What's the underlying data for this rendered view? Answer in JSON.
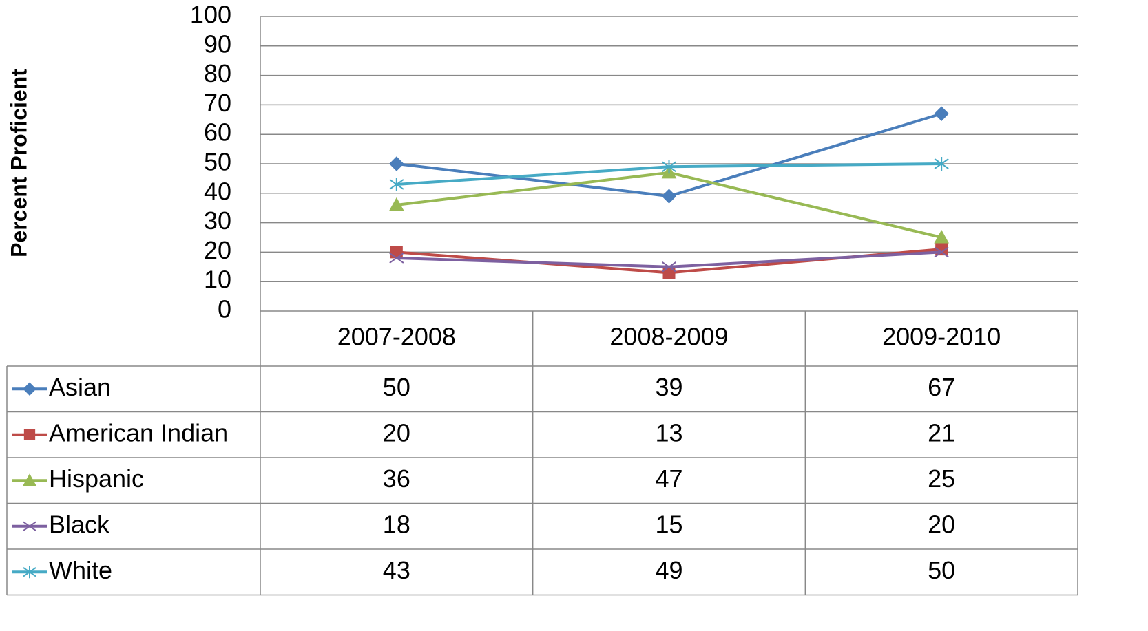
{
  "chart_data": {
    "type": "line",
    "ylabel": "Percent Proficient",
    "categories": [
      "2007-2008",
      "2008-2009",
      "2009-2010"
    ],
    "series": [
      {
        "name": "Asian",
        "color": "#4a7ebb",
        "marker": "diamond",
        "values": [
          50,
          39,
          67
        ]
      },
      {
        "name": "American Indian",
        "color": "#be4b48",
        "marker": "square",
        "values": [
          20,
          13,
          21
        ]
      },
      {
        "name": "Hispanic",
        "color": "#98b954",
        "marker": "triangle",
        "values": [
          36,
          47,
          25
        ]
      },
      {
        "name": "Black",
        "color": "#7d60a0",
        "marker": "x",
        "values": [
          18,
          15,
          20
        ]
      },
      {
        "name": "White",
        "color": "#46aac5",
        "marker": "asterisk",
        "values": [
          43,
          49,
          50
        ]
      }
    ],
    "ylim": [
      0,
      100
    ],
    "yticks": [
      0,
      10,
      20,
      30,
      40,
      50,
      60,
      70,
      80,
      90,
      100
    ],
    "grid": true,
    "data_table": true
  }
}
